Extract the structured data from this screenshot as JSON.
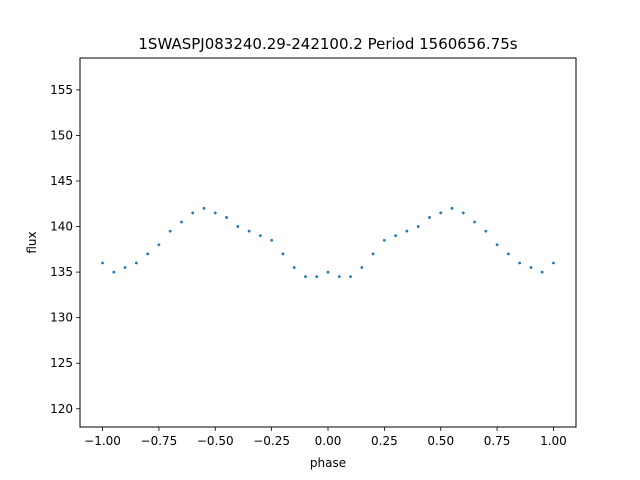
{
  "chart_data": {
    "type": "scatter",
    "title": "1SWASPJ083240.29-242100.2 Period 1560656.75s",
    "xlabel": "phase",
    "ylabel": "flux",
    "xlim": [
      -1.1,
      1.1
    ],
    "ylim": [
      118.0,
      158.5
    ],
    "xticks": [
      -1.0,
      -0.75,
      -0.5,
      -0.25,
      0.0,
      0.25,
      0.5,
      0.75,
      1.0
    ],
    "xtick_labels": [
      "−1.00",
      "−0.75",
      "−0.50",
      "−0.25",
      "0.00",
      "0.25",
      "0.50",
      "0.75",
      "1.00"
    ],
    "yticks": [
      120,
      125,
      130,
      135,
      140,
      145,
      150,
      155
    ],
    "ytick_labels": [
      "120",
      "125",
      "130",
      "135",
      "140",
      "145",
      "150",
      "155"
    ],
    "grid": false,
    "marker_color": "#1f77b4",
    "series": [
      {
        "x": [
          -1.0,
          -0.95,
          -0.9,
          -0.85,
          -0.8,
          -0.75,
          -0.7,
          -0.65,
          -0.6,
          -0.55,
          -0.5,
          -0.45,
          -0.4,
          -0.35,
          -0.3,
          -0.25,
          -0.2,
          -0.15,
          -0.1,
          -0.05,
          0.0,
          0.05,
          0.1,
          0.15,
          0.2,
          0.25,
          0.3,
          0.35,
          0.4,
          0.45,
          0.5,
          0.55,
          0.6,
          0.65,
          0.7,
          0.75,
          0.8,
          0.85,
          0.9,
          0.95,
          1.0
        ],
        "y": [
          136,
          135,
          135.5,
          136,
          137,
          138,
          139.5,
          140.5,
          141.5,
          142,
          141.5,
          141,
          140,
          139.5,
          139,
          138.5,
          137,
          135.5,
          134.5,
          134.5,
          135,
          134.5,
          134.5,
          135.5,
          137,
          138.5,
          139,
          139.5,
          140,
          141,
          141.5,
          142,
          141.5,
          140.5,
          139.5,
          138,
          137,
          136,
          135.5,
          135,
          136
        ]
      }
    ]
  }
}
